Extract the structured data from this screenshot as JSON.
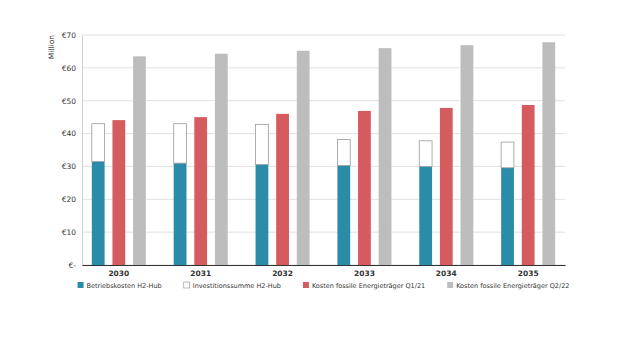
{
  "chart_data": {
    "type": "bar",
    "y_label": "Million",
    "categories": [
      "2030",
      "2031",
      "2032",
      "2033",
      "2034",
      "2035"
    ],
    "series": [
      {
        "name": "Betriebskosten H2-Hub",
        "color": "#2a8ca8",
        "stacked": true,
        "values": [
          31.5,
          31,
          30.6,
          30.3,
          30,
          29.6
        ]
      },
      {
        "name": "Investitionssumme H2-Hub",
        "color": "#ffffff",
        "stacked": true,
        "values": [
          11.5,
          12,
          12.2,
          7.9,
          7.8,
          7.8
        ]
      },
      {
        "name": "Kosten fossile Energieträger Q1/21",
        "color": "#d65b5f",
        "values": [
          44.1,
          45,
          46,
          46.9,
          47.8,
          48.7
        ]
      },
      {
        "name": "Kosten fossile Energieträger Q2/22",
        "color": "#bdbdbd",
        "values": [
          63.5,
          64.3,
          65.2,
          66,
          66.9,
          67.8
        ]
      }
    ],
    "ylim": [
      0,
      70
    ],
    "yticks": [
      {
        "value": 0,
        "label": "€-"
      },
      {
        "value": 10,
        "label": "€10"
      },
      {
        "value": 20,
        "label": "€20"
      },
      {
        "value": 30,
        "label": "€30"
      },
      {
        "value": 40,
        "label": "€40"
      },
      {
        "value": 50,
        "label": "€50"
      },
      {
        "value": 60,
        "label": "€60"
      },
      {
        "value": 70,
        "label": "€70"
      }
    ],
    "grid": true,
    "legend": "bottom"
  }
}
